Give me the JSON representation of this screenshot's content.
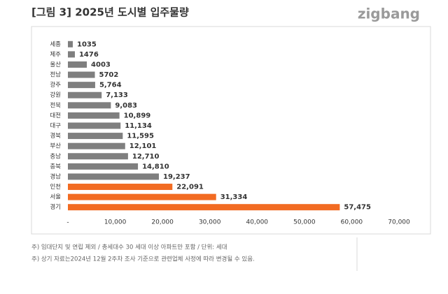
{
  "chart_data": {
    "type": "hbar",
    "title": "[그림 3] 2025년 도시별 입주물량",
    "logo": "zigbang",
    "categories": [
      "세종",
      "제주",
      "울산",
      "전남",
      "광주",
      "강원",
      "전북",
      "대전",
      "대구",
      "경북",
      "부산",
      "충남",
      "충북",
      "경남",
      "인천",
      "서울",
      "경기"
    ],
    "values": [
      1035,
      1476,
      4003,
      5702,
      5764,
      7133,
      9083,
      10899,
      11134,
      11595,
      12101,
      12710,
      14810,
      19237,
      22091,
      31334,
      57475
    ],
    "value_labels": [
      "1035",
      "1476",
      "4003",
      "5702",
      "5,764",
      "7,133",
      "9,083",
      "10,899",
      "11,134",
      "11,595",
      "12,101",
      "12,710",
      "14,810",
      "19,237",
      "22,091",
      "31,334",
      "57,475"
    ],
    "colors": [
      "#7f7f7f",
      "#7f7f7f",
      "#7f7f7f",
      "#7f7f7f",
      "#7f7f7f",
      "#7f7f7f",
      "#7f7f7f",
      "#7f7f7f",
      "#7f7f7f",
      "#7f7f7f",
      "#7f7f7f",
      "#7f7f7f",
      "#7f7f7f",
      "#7f7f7f",
      "#f26b22",
      "#f26b22",
      "#f26b22"
    ],
    "xlim": [
      0,
      70000
    ],
    "xticks": [
      {
        "value": 0,
        "label": "-"
      },
      {
        "value": 10000,
        "label": "10,000"
      },
      {
        "value": 20000,
        "label": "20,000"
      },
      {
        "value": 30000,
        "label": "30,000"
      },
      {
        "value": 40000,
        "label": "40,000"
      },
      {
        "value": 50000,
        "label": "50,000"
      },
      {
        "value": 60000,
        "label": "60,000"
      },
      {
        "value": 70000,
        "label": "70,000"
      }
    ],
    "grid": false,
    "notes": [
      "주) 임대단지 및 연립 제외 / 총세대수 30 세대 이상 아파트만 포함 / 단위: 세대",
      "주) 상기 자료는2024년 12월 2주차 조사 기준으로 관련업체 사정에 따라 변경될 수 있음."
    ]
  }
}
